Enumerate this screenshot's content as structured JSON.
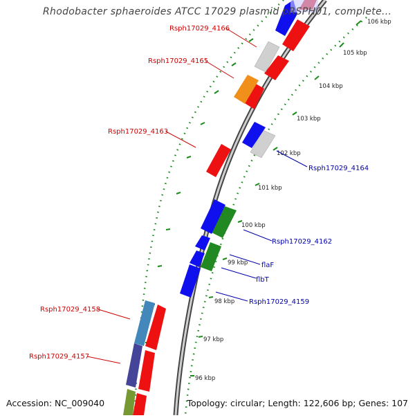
{
  "title": "Rhodobacter sphaeroides ATCC 17029 plasmid pRSPH01, complete...",
  "footer": {
    "accession": "Accession: NC_009040",
    "summary": "Topology: circular; Length: 122,606 bp; Genes: 107"
  },
  "colors": {
    "forward_label": "#cc0000",
    "reverse_label": "#0000aa",
    "backbone": "#808080",
    "ticks": "#118811"
  },
  "ticks": [
    "106 kbp",
    "105 kbp",
    "104 kbp",
    "103 kbp",
    "102 kbp",
    "101 kbp",
    "100 kbp",
    "99 kbp",
    "98 kbp",
    "97 kbp",
    "96 kbp"
  ],
  "labels_left": [
    "Rsph17029_4166",
    "Rsph17029_4165",
    "Rsph17029_4163",
    "Rsph17029_4158",
    "Rsph17029_4157"
  ],
  "labels_right": [
    "Rsph17029_4164",
    "Rsph17029_4162",
    "flaF",
    "flbT",
    "Rsph17029_4159"
  ]
}
